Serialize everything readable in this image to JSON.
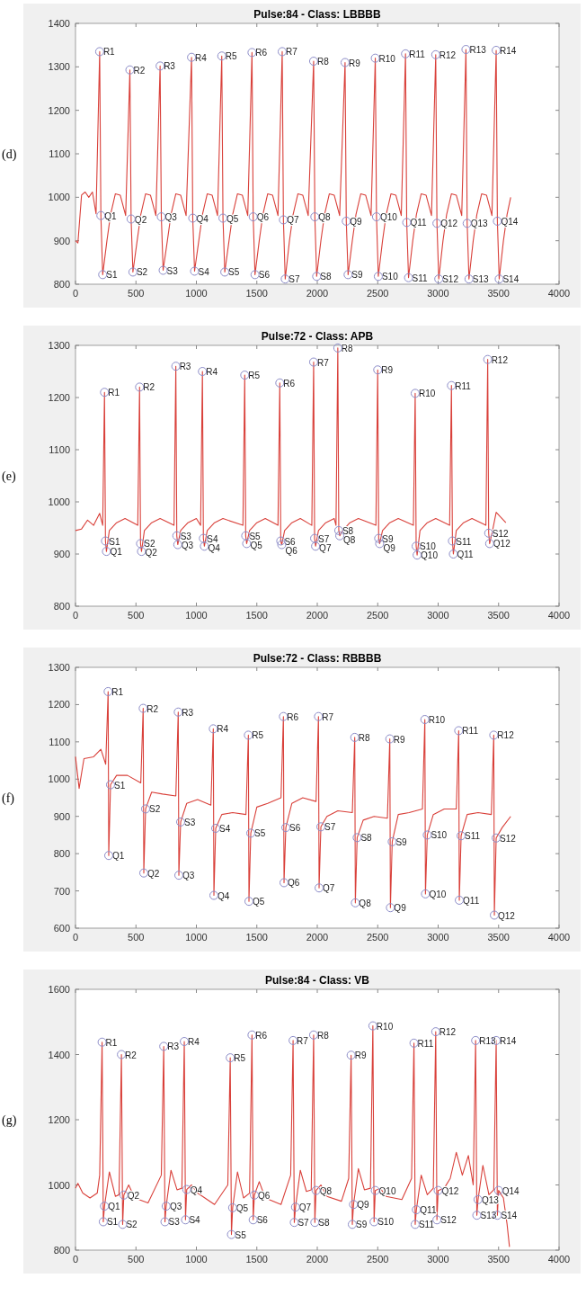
{
  "chart_data": [
    {
      "type": "line",
      "title": "Pulse:84 - Class: LBBBB",
      "xlim": [
        0,
        4000
      ],
      "xticks": [
        0,
        500,
        1000,
        1500,
        2000,
        2500,
        3000,
        3500,
        4000
      ],
      "ylim": [
        800,
        1400
      ],
      "yticks": [
        800,
        900,
        1000,
        1100,
        1200,
        1300,
        1400
      ],
      "series": [
        {
          "color": "#d9403a",
          "x": [
            0,
            20,
            50,
            80,
            110,
            140,
            170,
            200,
            210,
            225,
            260,
            290,
            330,
            370,
            415,
            450,
            460,
            475,
            510,
            540,
            580,
            620,
            665,
            700,
            710,
            725,
            760,
            790,
            830,
            870,
            915,
            960,
            970,
            985,
            1020,
            1050,
            1090,
            1130,
            1175,
            1210,
            1220,
            1235,
            1270,
            1300,
            1340,
            1380,
            1425,
            1460,
            1470,
            1485,
            1520,
            1550,
            1590,
            1630,
            1675,
            1710,
            1720,
            1735,
            1770,
            1800,
            1840,
            1880,
            1925,
            1970,
            1980,
            1995,
            2030,
            2060,
            2100,
            2140,
            2185,
            2230,
            2240,
            2255,
            2290,
            2320,
            2360,
            2400,
            2445,
            2480,
            2490,
            2505,
            2540,
            2570,
            2610,
            2650,
            2695,
            2730,
            2740,
            2755,
            2790,
            2820,
            2860,
            2900,
            2945,
            2980,
            2990,
            3005,
            3040,
            3070,
            3110,
            3150,
            3195,
            3230,
            3240,
            3255,
            3290,
            3320,
            3360,
            3400,
            3445,
            3480,
            3490,
            3505,
            3540,
            3570,
            3600
          ],
          "values": [
            900,
            895,
            1005,
            1012,
            1000,
            1012,
            962,
            1335,
            958,
            822,
            900,
            960,
            1008,
            1005,
            958,
            1293,
            950,
            828,
            900,
            960,
            1008,
            1005,
            958,
            1302,
            955,
            832,
            900,
            960,
            1008,
            1005,
            958,
            1322,
            952,
            830,
            900,
            960,
            1008,
            1005,
            958,
            1325,
            952,
            828,
            900,
            960,
            1008,
            1005,
            958,
            1333,
            955,
            822,
            900,
            960,
            1008,
            1005,
            958,
            1335,
            948,
            812,
            900,
            960,
            1008,
            1005,
            958,
            1313,
            955,
            818,
            900,
            960,
            1008,
            1005,
            958,
            1310,
            945,
            822,
            900,
            960,
            1008,
            1005,
            958,
            1320,
            955,
            818,
            900,
            960,
            1008,
            1005,
            958,
            1330,
            942,
            815,
            900,
            960,
            1008,
            1005,
            958,
            1328,
            940,
            812,
            900,
            960,
            1008,
            1005,
            958,
            1340,
            940,
            812,
            900,
            960,
            1008,
            1005,
            958,
            1338,
            945,
            812,
            900,
            960,
            1000
          ]
        },
        {
          "type": "scatter",
          "color": "#8c8cc8",
          "marker": "circle",
          "x": [
            200,
            450,
            700,
            960,
            1210,
            1460,
            1710,
            1970,
            2230,
            2480,
            2730,
            2980,
            3230,
            3480,
            210,
            460,
            710,
            970,
            1220,
            1470,
            1720,
            1980,
            2240,
            2490,
            2740,
            2990,
            3240,
            3490,
            225,
            475,
            725,
            985,
            1235,
            1485,
            1735,
            1995,
            2255,
            2505,
            2755,
            3005,
            3255,
            3505
          ],
          "values": [
            1335,
            1293,
            1302,
            1322,
            1325,
            1333,
            1335,
            1313,
            1310,
            1320,
            1330,
            1328,
            1340,
            1338,
            958,
            950,
            955,
            952,
            952,
            955,
            948,
            955,
            945,
            955,
            942,
            940,
            940,
            945,
            822,
            828,
            832,
            830,
            828,
            822,
            812,
            818,
            822,
            818,
            815,
            812,
            812,
            812
          ]
        }
      ],
      "annotations": [
        "(d)",
        {
          "text": "R1",
          "x": 200,
          "y": 1335
        },
        {
          "text": "R2",
          "x": 450,
          "y": 1293
        },
        {
          "text": "R3",
          "x": 700,
          "y": 1302
        },
        {
          "text": "R4",
          "x": 960,
          "y": 1322
        },
        {
          "text": "R5",
          "x": 1210,
          "y": 1325
        },
        {
          "text": "R6",
          "x": 1460,
          "y": 1333
        },
        {
          "text": "R7",
          "x": 1710,
          "y": 1335
        },
        {
          "text": "R8",
          "x": 1970,
          "y": 1313
        },
        {
          "text": "R9",
          "x": 2230,
          "y": 1310
        },
        {
          "text": "R10",
          "x": 2480,
          "y": 1320
        },
        {
          "text": "R11",
          "x": 2730,
          "y": 1330
        },
        {
          "text": "R12",
          "x": 2980,
          "y": 1328
        },
        {
          "text": "R13",
          "x": 3230,
          "y": 1340
        },
        {
          "text": "R14",
          "x": 3480,
          "y": 1338
        },
        {
          "text": "Q1",
          "x": 210,
          "y": 958
        },
        {
          "text": "Q2",
          "x": 460,
          "y": 950
        },
        {
          "text": "Q3",
          "x": 710,
          "y": 955
        },
        {
          "text": "Q4",
          "x": 970,
          "y": 952
        },
        {
          "text": "Q5",
          "x": 1220,
          "y": 952
        },
        {
          "text": "Q6",
          "x": 1470,
          "y": 955
        },
        {
          "text": "Q7",
          "x": 1720,
          "y": 948
        },
        {
          "text": "Q8",
          "x": 1980,
          "y": 955
        },
        {
          "text": "Q9",
          "x": 2240,
          "y": 945
        },
        {
          "text": "Q10",
          "x": 2490,
          "y": 955
        },
        {
          "text": "Q11",
          "x": 2740,
          "y": 942
        },
        {
          "text": "Q12",
          "x": 2990,
          "y": 940
        },
        {
          "text": "Q13",
          "x": 3240,
          "y": 940
        },
        {
          "text": "Q14",
          "x": 3490,
          "y": 945
        },
        {
          "text": "S1",
          "x": 225,
          "y": 822
        },
        {
          "text": "S2",
          "x": 475,
          "y": 828
        },
        {
          "text": "S3",
          "x": 725,
          "y": 832
        },
        {
          "text": "S4",
          "x": 985,
          "y": 830
        },
        {
          "text": "S5",
          "x": 1235,
          "y": 828
        },
        {
          "text": "S6",
          "x": 1485,
          "y": 822
        },
        {
          "text": "S7",
          "x": 1735,
          "y": 812
        },
        {
          "text": "S8",
          "x": 1995,
          "y": 818
        },
        {
          "text": "S9",
          "x": 2255,
          "y": 822
        },
        {
          "text": "S10",
          "x": 2505,
          "y": 818
        },
        {
          "text": "S11",
          "x": 2755,
          "y": 815
        },
        {
          "text": "S12",
          "x": 3005,
          "y": 812
        },
        {
          "text": "S13",
          "x": 3255,
          "y": 812
        },
        {
          "text": "S14",
          "x": 3505,
          "y": 812
        }
      ]
    },
    {
      "type": "line",
      "title": "Pulse:72 - Class: APB",
      "xlim": [
        0,
        4000
      ],
      "xticks": [
        0,
        500,
        1000,
        1500,
        2000,
        2500,
        3000,
        3500,
        4000
      ],
      "ylim": [
        800,
        1300
      ],
      "yticks": [
        800,
        900,
        1000,
        1100,
        1200,
        1300
      ],
      "series": [
        {
          "color": "#d9403a",
          "x": [
            0,
            50,
            100,
            150,
            200,
            225,
            240,
            248,
            256,
            280,
            340,
            410,
            515,
            530,
            538,
            546,
            570,
            630,
            700,
            815,
            830,
            838,
            846,
            870,
            930,
            1000,
            1035,
            1050,
            1058,
            1066,
            1090,
            1150,
            1220,
            1385,
            1400,
            1408,
            1416,
            1440,
            1500,
            1570,
            1675,
            1690,
            1698,
            1706,
            1730,
            1790,
            1860,
            1955,
            1970,
            1978,
            1986,
            2010,
            2070,
            2140,
            2155,
            2170,
            2178,
            2186,
            2210,
            2270,
            2340,
            2485,
            2500,
            2508,
            2516,
            2540,
            2600,
            2670,
            2795,
            2810,
            2818,
            2826,
            2850,
            2910,
            2980,
            3095,
            3110,
            3118,
            3126,
            3150,
            3210,
            3280,
            3395,
            3410,
            3418,
            3426,
            3450,
            3480,
            3520,
            3560
          ],
          "values": [
            945,
            948,
            965,
            955,
            978,
            955,
            1210,
            925,
            905,
            945,
            960,
            968,
            955,
            1220,
            920,
            905,
            945,
            960,
            968,
            955,
            1260,
            935,
            918,
            945,
            960,
            968,
            955,
            1250,
            930,
            915,
            945,
            960,
            968,
            955,
            1243,
            935,
            920,
            945,
            960,
            968,
            955,
            1228,
            925,
            918,
            945,
            960,
            968,
            955,
            1268,
            930,
            915,
            945,
            960,
            968,
            955,
            1295,
            945,
            935,
            945,
            960,
            968,
            955,
            1253,
            930,
            920,
            945,
            960,
            968,
            955,
            1208,
            915,
            898,
            945,
            960,
            968,
            955,
            1223,
            925,
            900,
            945,
            960,
            968,
            955,
            1273,
            940,
            920,
            945,
            980,
            970,
            960
          ]
        },
        {
          "type": "scatter",
          "color": "#8c8cc8",
          "marker": "circle",
          "x": [
            240,
            530,
            830,
            1050,
            1400,
            1690,
            1970,
            2170,
            2500,
            2810,
            3110,
            3410,
            248,
            538,
            838,
            1058,
            1408,
            1698,
            1978,
            2178,
            2508,
            2818,
            3118,
            3418,
            256,
            546,
            846,
            1066,
            1416,
            1706,
            1986,
            2186,
            2516,
            2826,
            3126,
            3426
          ],
          "values": [
            1210,
            1220,
            1260,
            1250,
            1243,
            1228,
            1268,
            1295,
            1253,
            1208,
            1223,
            1273,
            925,
            920,
            935,
            930,
            935,
            925,
            930,
            945,
            930,
            915,
            925,
            940,
            905,
            905,
            918,
            915,
            920,
            918,
            915,
            935,
            920,
            898,
            900,
            920
          ]
        }
      ],
      "annotations": [
        "(e)",
        {
          "text": "R1",
          "x": 240,
          "y": 1210
        },
        {
          "text": "R2",
          "x": 530,
          "y": 1220
        },
        {
          "text": "R3",
          "x": 830,
          "y": 1260
        },
        {
          "text": "R4",
          "x": 1050,
          "y": 1250
        },
        {
          "text": "R5",
          "x": 1400,
          "y": 1243
        },
        {
          "text": "R6",
          "x": 1690,
          "y": 1228
        },
        {
          "text": "R7",
          "x": 1970,
          "y": 1268
        },
        {
          "text": "R8",
          "x": 2170,
          "y": 1295
        },
        {
          "text": "R9",
          "x": 2500,
          "y": 1253
        },
        {
          "text": "R10",
          "x": 2810,
          "y": 1208
        },
        {
          "text": "R11",
          "x": 3110,
          "y": 1223
        },
        {
          "text": "R12",
          "x": 3410,
          "y": 1273
        },
        {
          "text": "S1",
          "x": 248,
          "y": 925
        },
        {
          "text": "S2",
          "x": 538,
          "y": 920
        },
        {
          "text": "S3",
          "x": 838,
          "y": 935
        },
        {
          "text": "S4",
          "x": 1058,
          "y": 930
        },
        {
          "text": "S5",
          "x": 1408,
          "y": 935
        },
        {
          "text": "S6",
          "x": 1698,
          "y": 925
        },
        {
          "text": "S7",
          "x": 1978,
          "y": 930
        },
        {
          "text": "S8",
          "x": 2178,
          "y": 945
        },
        {
          "text": "S9",
          "x": 2508,
          "y": 930
        },
        {
          "text": "S10",
          "x": 2818,
          "y": 915
        },
        {
          "text": "S11",
          "x": 3118,
          "y": 925
        },
        {
          "text": "S12",
          "x": 3418,
          "y": 940
        },
        {
          "text": "Q1",
          "x": 256,
          "y": 905
        },
        {
          "text": "Q2",
          "x": 546,
          "y": 905
        },
        {
          "text": "Q3",
          "x": 846,
          "y": 918
        },
        {
          "text": "Q4",
          "x": 1066,
          "y": 915
        },
        {
          "text": "Q5",
          "x": 1416,
          "y": 920
        },
        {
          "text": "Q6",
          "x": 1706,
          "y": 918
        },
        {
          "text": "Q7",
          "x": 1986,
          "y": 915
        },
        {
          "text": "Q8",
          "x": 2186,
          "y": 935
        },
        {
          "text": "Q9",
          "x": 2516,
          "y": 920
        },
        {
          "text": "Q10",
          "x": 2826,
          "y": 898
        },
        {
          "text": "Q11",
          "x": 3126,
          "y": 900
        },
        {
          "text": "Q12",
          "x": 3426,
          "y": 920
        }
      ]
    },
    {
      "type": "line",
      "title": "Pulse:72 - Class: RBBBB",
      "xlim": [
        0,
        4000
      ],
      "xticks": [
        0,
        500,
        1000,
        1500,
        2000,
        2500,
        3000,
        3500,
        4000
      ],
      "ylim": [
        600,
        1300
      ],
      "yticks": [
        600,
        700,
        800,
        900,
        1000,
        1100,
        1200,
        1300
      ],
      "series": [
        {
          "color": "#d9403a",
          "x": [
            0,
            30,
            70,
            150,
            210,
            250,
            270,
            275,
            290,
            340,
            430,
            540,
            560,
            565,
            580,
            630,
            720,
            830,
            850,
            855,
            870,
            920,
            1010,
            1120,
            1140,
            1145,
            1160,
            1210,
            1300,
            1410,
            1430,
            1435,
            1450,
            1500,
            1590,
            1700,
            1720,
            1725,
            1740,
            1790,
            1880,
            1990,
            2010,
            2015,
            2030,
            2080,
            2170,
            2290,
            2310,
            2315,
            2330,
            2380,
            2470,
            2580,
            2600,
            2605,
            2620,
            2670,
            2760,
            2870,
            2890,
            2895,
            2910,
            2960,
            3050,
            3150,
            3170,
            3175,
            3190,
            3240,
            3330,
            3440,
            3460,
            3465,
            3480,
            3530,
            3600
          ],
          "values": [
            1060,
            975,
            1055,
            1060,
            1080,
            1040,
            1235,
            795,
            985,
            1010,
            1010,
            990,
            1190,
            748,
            920,
            965,
            960,
            955,
            1180,
            742,
            885,
            935,
            945,
            930,
            1135,
            688,
            868,
            905,
            910,
            905,
            1118,
            672,
            855,
            925,
            935,
            950,
            1168,
            722,
            870,
            935,
            950,
            940,
            1168,
            708,
            872,
            900,
            915,
            910,
            1112,
            668,
            843,
            890,
            900,
            895,
            1108,
            655,
            832,
            905,
            910,
            920,
            1160,
            692,
            850,
            905,
            920,
            920,
            1130,
            675,
            848,
            905,
            910,
            905,
            1118,
            635,
            842,
            870,
            900
          ]
        },
        {
          "type": "scatter",
          "color": "#8c8cc8",
          "marker": "circle",
          "x": [
            270,
            560,
            850,
            1140,
            1430,
            1720,
            2010,
            2310,
            2600,
            2890,
            3170,
            3460,
            275,
            565,
            855,
            1145,
            1435,
            1725,
            2015,
            2315,
            2605,
            2895,
            3175,
            3465,
            290,
            580,
            870,
            1160,
            1450,
            1740,
            2030,
            2330,
            2620,
            2910,
            3190,
            3480
          ],
          "values": [
            1235,
            1190,
            1180,
            1135,
            1118,
            1168,
            1168,
            1112,
            1108,
            1160,
            1130,
            1118,
            795,
            748,
            742,
            688,
            672,
            722,
            708,
            668,
            655,
            692,
            675,
            635,
            985,
            920,
            885,
            868,
            855,
            870,
            872,
            843,
            832,
            850,
            848,
            842
          ]
        }
      ],
      "annotations": [
        "(f)",
        {
          "text": "R1",
          "x": 270,
          "y": 1235
        },
        {
          "text": "R2",
          "x": 560,
          "y": 1190
        },
        {
          "text": "R3",
          "x": 850,
          "y": 1180
        },
        {
          "text": "R4",
          "x": 1140,
          "y": 1135
        },
        {
          "text": "R5",
          "x": 1430,
          "y": 1118
        },
        {
          "text": "R6",
          "x": 1720,
          "y": 1168
        },
        {
          "text": "R7",
          "x": 2010,
          "y": 1168
        },
        {
          "text": "R8",
          "x": 2310,
          "y": 1112
        },
        {
          "text": "R9",
          "x": 2600,
          "y": 1108
        },
        {
          "text": "R10",
          "x": 2890,
          "y": 1160
        },
        {
          "text": "R11",
          "x": 3170,
          "y": 1130
        },
        {
          "text": "R12",
          "x": 3460,
          "y": 1118
        },
        {
          "text": "Q1",
          "x": 275,
          "y": 795
        },
        {
          "text": "Q2",
          "x": 565,
          "y": 748
        },
        {
          "text": "Q3",
          "x": 855,
          "y": 742
        },
        {
          "text": "Q4",
          "x": 1145,
          "y": 688
        },
        {
          "text": "Q5",
          "x": 1435,
          "y": 672
        },
        {
          "text": "Q6",
          "x": 1725,
          "y": 722
        },
        {
          "text": "Q7",
          "x": 2015,
          "y": 708
        },
        {
          "text": "Q8",
          "x": 2315,
          "y": 668
        },
        {
          "text": "Q9",
          "x": 2605,
          "y": 655
        },
        {
          "text": "Q10",
          "x": 2895,
          "y": 692
        },
        {
          "text": "Q11",
          "x": 3175,
          "y": 675
        },
        {
          "text": "Q12",
          "x": 3465,
          "y": 635
        },
        {
          "text": "S1",
          "x": 290,
          "y": 985
        },
        {
          "text": "S2",
          "x": 580,
          "y": 920
        },
        {
          "text": "S3",
          "x": 870,
          "y": 885
        },
        {
          "text": "S4",
          "x": 1160,
          "y": 868
        },
        {
          "text": "S5",
          "x": 1450,
          "y": 855
        },
        {
          "text": "S6",
          "x": 1740,
          "y": 870
        },
        {
          "text": "S7",
          "x": 2030,
          "y": 872
        },
        {
          "text": "S8",
          "x": 2330,
          "y": 843
        },
        {
          "text": "S9",
          "x": 2620,
          "y": 832
        },
        {
          "text": "S10",
          "x": 2910,
          "y": 850
        },
        {
          "text": "S11",
          "x": 3190,
          "y": 848
        },
        {
          "text": "S12",
          "x": 3480,
          "y": 842
        }
      ]
    },
    {
      "type": "line",
      "title": "Pulse:84 - Class: VB",
      "xlim": [
        0,
        4000
      ],
      "xticks": [
        0,
        500,
        1000,
        1500,
        2000,
        2500,
        3000,
        3500,
        4000
      ],
      "ylim": [
        800,
        1600
      ],
      "yticks": [
        800,
        1000,
        1200,
        1400,
        1600
      ],
      "series": [
        {
          "color": "#d9403a",
          "x": [
            0,
            20,
            60,
            120,
            180,
            200,
            220,
            230,
            240,
            280,
            330,
            360,
            380,
            390,
            400,
            440,
            490,
            600,
            710,
            730,
            740,
            750,
            790,
            840,
            880,
            900,
            910,
            920,
            960,
            1010,
            1150,
            1260,
            1280,
            1290,
            1300,
            1340,
            1390,
            1440,
            1460,
            1470,
            1480,
            1520,
            1570,
            1700,
            1780,
            1800,
            1810,
            1820,
            1860,
            1910,
            1950,
            1970,
            1980,
            1990,
            2030,
            2080,
            2200,
            2260,
            2280,
            2290,
            2300,
            2340,
            2390,
            2440,
            2460,
            2470,
            2480,
            2520,
            2570,
            2700,
            2780,
            2800,
            2810,
            2820,
            2860,
            2910,
            2960,
            2980,
            2990,
            3000,
            3050,
            3100,
            3150,
            3200,
            3250,
            3290,
            3310,
            3320,
            3330,
            3370,
            3420,
            3460,
            3480,
            3490,
            3500,
            3540,
            3570,
            3590
          ],
          "values": [
            990,
            1005,
            975,
            960,
            975,
            1030,
            1438,
            887,
            935,
            1040,
            965,
            970,
            1400,
            879,
            969,
            1000,
            960,
            945,
            1030,
            1425,
            887,
            935,
            1045,
            985,
            990,
            1440,
            893,
            986,
            1000,
            975,
            940,
            1000,
            1390,
            848,
            930,
            1040,
            960,
            975,
            1460,
            893,
            969,
            1010,
            960,
            940,
            1030,
            1443,
            885,
            932,
            1045,
            980,
            985,
            1460,
            885,
            983,
            1000,
            965,
            950,
            1020,
            1398,
            879,
            940,
            1050,
            985,
            990,
            1488,
            887,
            983,
            990,
            965,
            955,
            1020,
            1435,
            879,
            924,
            1030,
            970,
            990,
            1470,
            893,
            983,
            990,
            1020,
            1100,
            1030,
            1090,
            1000,
            1443,
            907,
            955,
            1060,
            970,
            985,
            1443,
            907,
            983,
            960,
            880,
            810
          ]
        },
        {
          "type": "scatter",
          "color": "#8c8cc8",
          "marker": "circle",
          "x": [
            220,
            380,
            730,
            900,
            1280,
            1460,
            1800,
            1970,
            2280,
            2460,
            2800,
            2980,
            3310,
            3480,
            230,
            390,
            740,
            910,
            1290,
            1470,
            1810,
            1980,
            2290,
            2470,
            2810,
            2990,
            3320,
            3490,
            240,
            400,
            750,
            920,
            1300,
            1480,
            1820,
            1990,
            2300,
            2480,
            2820,
            3000,
            3330,
            3500
          ],
          "values": [
            1438,
            1400,
            1425,
            1440,
            1390,
            1460,
            1443,
            1460,
            1398,
            1488,
            1435,
            1470,
            1443,
            1443,
            887,
            879,
            887,
            893,
            848,
            893,
            885,
            885,
            879,
            887,
            879,
            893,
            907,
            907,
            935,
            969,
            935,
            986,
            930,
            969,
            932,
            983,
            940,
            983,
            924,
            983,
            955,
            983
          ]
        }
      ],
      "annotations": [
        "(g)",
        {
          "text": "R1",
          "x": 220,
          "y": 1438
        },
        {
          "text": "R2",
          "x": 380,
          "y": 1400
        },
        {
          "text": "R3",
          "x": 730,
          "y": 1425
        },
        {
          "text": "R4",
          "x": 900,
          "y": 1440
        },
        {
          "text": "R5",
          "x": 1280,
          "y": 1390
        },
        {
          "text": "R6",
          "x": 1460,
          "y": 1460
        },
        {
          "text": "R7",
          "x": 1800,
          "y": 1443
        },
        {
          "text": "R8",
          "x": 1970,
          "y": 1460
        },
        {
          "text": "R9",
          "x": 2280,
          "y": 1398
        },
        {
          "text": "R10",
          "x": 2460,
          "y": 1488
        },
        {
          "text": "R11",
          "x": 2800,
          "y": 1435
        },
        {
          "text": "R12",
          "x": 2980,
          "y": 1470
        },
        {
          "text": "R13",
          "x": 3310,
          "y": 1443
        },
        {
          "text": "R14",
          "x": 3480,
          "y": 1443
        },
        {
          "text": "S1",
          "x": 230,
          "y": 887
        },
        {
          "text": "S2",
          "x": 390,
          "y": 879
        },
        {
          "text": "S3",
          "x": 740,
          "y": 887
        },
        {
          "text": "S4",
          "x": 910,
          "y": 893
        },
        {
          "text": "S5",
          "x": 1290,
          "y": 848
        },
        {
          "text": "S6",
          "x": 1470,
          "y": 893
        },
        {
          "text": "S7",
          "x": 1810,
          "y": 885
        },
        {
          "text": "S8",
          "x": 1980,
          "y": 885
        },
        {
          "text": "S9",
          "x": 2290,
          "y": 879
        },
        {
          "text": "S10",
          "x": 2470,
          "y": 887
        },
        {
          "text": "S11",
          "x": 2810,
          "y": 879
        },
        {
          "text": "S12",
          "x": 2990,
          "y": 893
        },
        {
          "text": "S13",
          "x": 3320,
          "y": 907
        },
        {
          "text": "S14",
          "x": 3490,
          "y": 907
        },
        {
          "text": "Q1",
          "x": 240,
          "y": 935
        },
        {
          "text": "Q2",
          "x": 400,
          "y": 969
        },
        {
          "text": "Q3",
          "x": 750,
          "y": 935
        },
        {
          "text": "Q4",
          "x": 920,
          "y": 986
        },
        {
          "text": "Q5",
          "x": 1300,
          "y": 930
        },
        {
          "text": "Q6",
          "x": 1480,
          "y": 969
        },
        {
          "text": "Q7",
          "x": 1820,
          "y": 932
        },
        {
          "text": "Q8",
          "x": 1990,
          "y": 983
        },
        {
          "text": "Q9",
          "x": 2300,
          "y": 940
        },
        {
          "text": "Q10",
          "x": 2480,
          "y": 983
        },
        {
          "text": "Q11",
          "x": 2820,
          "y": 924
        },
        {
          "text": "Q12",
          "x": 3000,
          "y": 983
        },
        {
          "text": "Q13",
          "x": 3330,
          "y": 955
        },
        {
          "text": "Q14",
          "x": 3500,
          "y": 983
        }
      ]
    }
  ]
}
